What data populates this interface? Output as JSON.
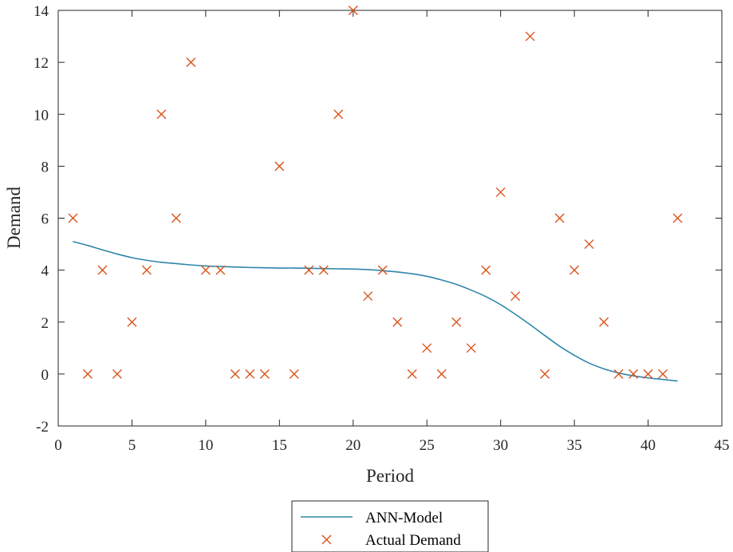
{
  "chart_data": {
    "type": "line",
    "title": "",
    "xlabel": "Period",
    "ylabel": "Demand",
    "xlim": [
      0,
      45
    ],
    "ylim": [
      -2,
      14
    ],
    "xticks": [
      0,
      5,
      10,
      15,
      20,
      25,
      30,
      35,
      40,
      45
    ],
    "yticks": [
      -2,
      0,
      2,
      4,
      6,
      8,
      10,
      12,
      14
    ],
    "grid": false,
    "legend": {
      "placement": "bottom-outside",
      "entries": [
        "ANN-Model",
        "Actual Demand"
      ]
    },
    "series": [
      {
        "name": "ANN-Model",
        "style": "line",
        "color": "#2e86ab",
        "x": [
          1,
          2,
          3,
          4,
          5,
          6,
          7,
          8,
          9,
          10,
          11,
          12,
          13,
          14,
          15,
          16,
          17,
          18,
          19,
          20,
          21,
          22,
          23,
          24,
          25,
          26,
          27,
          28,
          29,
          30,
          31,
          32,
          33,
          34,
          35,
          36,
          37,
          38,
          39,
          40,
          41,
          42
        ],
        "y": [
          5.1,
          4.95,
          4.78,
          4.62,
          4.48,
          4.38,
          4.3,
          4.25,
          4.2,
          4.16,
          4.14,
          4.12,
          4.1,
          4.09,
          4.08,
          4.08,
          4.07,
          4.06,
          4.05,
          4.04,
          4.02,
          3.98,
          3.93,
          3.86,
          3.76,
          3.62,
          3.45,
          3.23,
          2.98,
          2.67,
          2.3,
          1.9,
          1.48,
          1.07,
          0.72,
          0.42,
          0.2,
          0.04,
          -0.07,
          -0.15,
          -0.21,
          -0.27
        ]
      },
      {
        "name": "Actual Demand",
        "style": "marker-x",
        "color": "#d95319",
        "x": [
          1,
          2,
          3,
          4,
          5,
          6,
          7,
          8,
          9,
          10,
          11,
          12,
          13,
          14,
          15,
          16,
          17,
          18,
          19,
          20,
          21,
          22,
          23,
          24,
          25,
          26,
          27,
          28,
          29,
          30,
          31,
          32,
          33,
          34,
          35,
          36,
          37,
          38,
          39,
          40,
          41,
          42
        ],
        "y": [
          6,
          0,
          4,
          0,
          2,
          4,
          10,
          6,
          12,
          4,
          4,
          0,
          0,
          0,
          8,
          0,
          4,
          4,
          10,
          14,
          3,
          4,
          2,
          0,
          1,
          0,
          2,
          1,
          4,
          7,
          3,
          13,
          0,
          6,
          4,
          5,
          2,
          0,
          0,
          0,
          0,
          6
        ]
      }
    ]
  }
}
